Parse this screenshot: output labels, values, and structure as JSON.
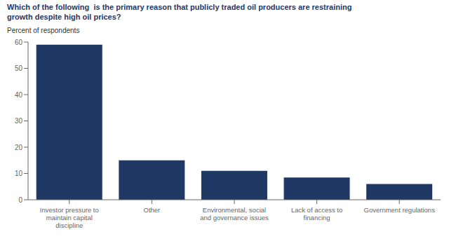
{
  "chart_data": {
    "type": "bar",
    "title": "Which of the following  is the primary reason that publicly traded oil producers are restraining\ngrowth despite high oil prices?",
    "y_label": "Percent of respondents",
    "categories": [
      "Investor pressure to\nmaintain capital\ndiscipline",
      "Other",
      "Environmental, social\nand governance issues",
      "Lack of access to\nfinancing",
      "Government regulations"
    ],
    "values": [
      59,
      15,
      11,
      8.5,
      6
    ],
    "color": "#1F3864",
    "ylim": [
      0,
      60
    ],
    "yticks": [
      0,
      10,
      20,
      30,
      40,
      50,
      60
    ],
    "grid": false
  }
}
